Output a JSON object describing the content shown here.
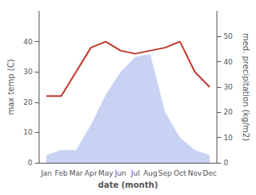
{
  "chart_data": {
    "type": "line",
    "categories": [
      "Jan",
      "Feb",
      "Mar",
      "Apr",
      "May",
      "Jun",
      "Jul",
      "Aug",
      "Sep",
      "Oct",
      "Nov",
      "Dec"
    ],
    "series": [
      {
        "type": "area",
        "axis": "y2",
        "color": "#b0bfee",
        "values": [
          3,
          5,
          5,
          15,
          27,
          36,
          42,
          43,
          20,
          10,
          5,
          3
        ]
      },
      {
        "type": "line",
        "axis": "y",
        "color": "#c0392b",
        "values": [
          22,
          22,
          30,
          38,
          40,
          37,
          36,
          37,
          38,
          40,
          30,
          25
        ]
      }
    ],
    "xlabel": "date (month)",
    "ylabel": "max temp (C)",
    "y2label": "med. precipitation (kg/m2)",
    "ylim": [
      0,
      50
    ],
    "yticks": [
      0,
      10,
      20,
      30,
      40
    ],
    "y2lim": [
      0,
      60
    ],
    "y2ticks": [
      0,
      10,
      20,
      30,
      40,
      50
    ],
    "grid": false
  }
}
